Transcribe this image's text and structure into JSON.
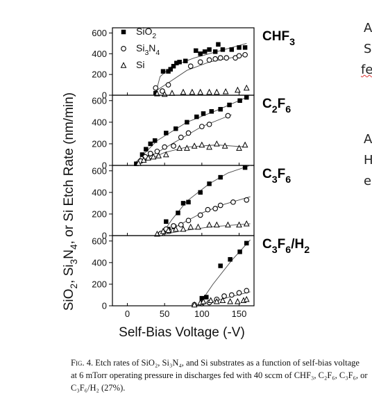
{
  "chart_data": {
    "type": "scatter",
    "xlabel": "Self-Bias Voltage (-V)",
    "ylabel": "SiO2, Si3N4, or Si Etch Rate (nm/min)",
    "xlim": [
      -20,
      170
    ],
    "x_ticks": [
      "0",
      "50",
      "100",
      "150"
    ],
    "legend": {
      "placement": "top-left",
      "entries": [
        "SiO2",
        "Si3N4",
        "Si"
      ]
    },
    "panels": [
      {
        "label": "CHF3",
        "ylim": [
          0,
          650
        ],
        "y_ticks": [
          "0",
          "200",
          "400",
          "600"
        ],
        "series": [
          {
            "name": "SiO2",
            "marker": "square",
            "points": [
              [
                38,
                20
              ],
              [
                48,
                230
              ],
              [
                55,
                230
              ],
              [
                58,
                250
              ],
              [
                62,
                280
              ],
              [
                66,
                310
              ],
              [
                70,
                320
              ],
              [
                78,
                330
              ],
              [
                92,
                430
              ],
              [
                98,
                400
              ],
              [
                104,
                420
              ],
              [
                110,
                440
              ],
              [
                118,
                420
              ],
              [
                122,
                490
              ],
              [
                128,
                440
              ],
              [
                140,
                440
              ],
              [
                150,
                460
              ],
              [
                158,
                460
              ]
            ]
          },
          {
            "name": "Si3N4",
            "marker": "circle",
            "points": [
              [
                38,
                70
              ],
              [
                47,
                40
              ],
              [
                55,
                100
              ],
              [
                85,
                280
              ],
              [
                98,
                320
              ],
              [
                110,
                340
              ],
              [
                118,
                350
              ],
              [
                125,
                360
              ],
              [
                133,
                360
              ],
              [
                145,
                360
              ],
              [
                150,
                380
              ],
              [
                158,
                390
              ]
            ]
          },
          {
            "name": "Si",
            "marker": "triangle",
            "points": [
              [
                40,
                15
              ],
              [
                50,
                10
              ],
              [
                60,
                20
              ],
              [
                75,
                30
              ],
              [
                87,
                30
              ],
              [
                98,
                30
              ],
              [
                110,
                30
              ],
              [
                120,
                30
              ],
              [
                132,
                35
              ],
              [
                148,
                50
              ],
              [
                160,
                70
              ]
            ]
          }
        ],
        "fits": [
          {
            "series": "SiO2",
            "points": [
              [
                38,
                20
              ],
              [
                44,
                180
              ],
              [
                60,
                280
              ],
              [
                90,
                360
              ],
              [
                120,
                420
              ],
              [
                160,
                500
              ]
            ]
          },
          {
            "series": "Si3N4",
            "points": [
              [
                38,
                40
              ],
              [
                55,
                120
              ],
              [
                80,
                240
              ],
              [
                110,
                320
              ],
              [
                160,
                390
              ]
            ]
          }
        ]
      },
      {
        "label": "C2F6",
        "ylim": [
          0,
          650
        ],
        "y_ticks": [
          "0",
          "200",
          "400",
          "600"
        ],
        "series": [
          {
            "name": "SiO2",
            "marker": "square",
            "points": [
              [
                12,
                15
              ],
              [
                20,
                100
              ],
              [
                25,
                150
              ],
              [
                31,
                200
              ],
              [
                37,
                230
              ],
              [
                52,
                300
              ],
              [
                65,
                340
              ],
              [
                80,
                400
              ],
              [
                93,
                450
              ],
              [
                102,
                480
              ],
              [
                113,
                500
              ],
              [
                125,
                520
              ],
              [
                137,
                560
              ],
              [
                151,
                600
              ],
              [
                160,
                630
              ]
            ]
          },
          {
            "name": "Si3N4",
            "marker": "circle",
            "points": [
              [
                18,
                40
              ],
              [
                24,
                80
              ],
              [
                31,
                110
              ],
              [
                40,
                130
              ],
              [
                50,
                170
              ],
              [
                62,
                180
              ],
              [
                72,
                260
              ],
              [
                82,
                300
              ],
              [
                100,
                360
              ],
              [
                110,
                380
              ],
              [
                135,
                460
              ]
            ]
          },
          {
            "name": "Si",
            "marker": "triangle",
            "points": [
              [
                15,
                20
              ],
              [
                22,
                50
              ],
              [
                28,
                70
              ],
              [
                35,
                80
              ],
              [
                42,
                90
              ],
              [
                52,
                100
              ],
              [
                70,
                160
              ],
              [
                80,
                160
              ],
              [
                90,
                180
              ],
              [
                100,
                190
              ],
              [
                110,
                170
              ],
              [
                120,
                200
              ],
              [
                131,
                180
              ],
              [
                150,
                160
              ],
              [
                158,
                190
              ]
            ]
          }
        ],
        "fits": [
          {
            "series": "SiO2",
            "points": [
              [
                10,
                20
              ],
              [
                40,
                230
              ],
              [
                80,
                400
              ],
              [
                120,
                510
              ],
              [
                160,
                630
              ]
            ]
          },
          {
            "series": "Si3N4",
            "points": [
              [
                15,
                20
              ],
              [
                50,
                160
              ],
              [
                100,
                360
              ],
              [
                140,
                470
              ]
            ]
          },
          {
            "series": "Si",
            "points": [
              [
                10,
                0
              ],
              [
                50,
                120
              ],
              [
                80,
                170
              ],
              [
                120,
                190
              ],
              [
                160,
                170
              ]
            ]
          }
        ]
      },
      {
        "label": "C3F6",
        "ylim": [
          0,
          650
        ],
        "y_ticks": [
          "0",
          "200",
          "400",
          "600"
        ],
        "series": [
          {
            "name": "SiO2",
            "marker": "square",
            "points": [
              [
                52,
                130
              ],
              [
                55,
                60
              ],
              [
                63,
                80
              ],
              [
                68,
                210
              ],
              [
                75,
                300
              ],
              [
                82,
                310
              ],
              [
                98,
                400
              ],
              [
                110,
                480
              ],
              [
                125,
                540
              ],
              [
                158,
                630
              ]
            ]
          },
          {
            "name": "Si3N4",
            "marker": "circle",
            "points": [
              [
                45,
                20
              ],
              [
                52,
                60
              ],
              [
                56,
                40
              ],
              [
                62,
                90
              ],
              [
                72,
                100
              ],
              [
                82,
                140
              ],
              [
                98,
                190
              ],
              [
                108,
                240
              ],
              [
                118,
                250
              ],
              [
                125,
                280
              ],
              [
                142,
                310
              ],
              [
                160,
                330
              ]
            ]
          },
          {
            "name": "Si",
            "marker": "triangle",
            "points": [
              [
                40,
                15
              ],
              [
                48,
                40
              ],
              [
                55,
                50
              ],
              [
                65,
                60
              ],
              [
                75,
                60
              ],
              [
                85,
                80
              ],
              [
                95,
                80
              ],
              [
                110,
                100
              ],
              [
                120,
                100
              ],
              [
                135,
                100
              ],
              [
                150,
                100
              ],
              [
                160,
                110
              ]
            ]
          }
        ],
        "fits": [
          {
            "series": "SiO2",
            "points": [
              [
                45,
                0
              ],
              [
                60,
                150
              ],
              [
                80,
                320
              ],
              [
                110,
                480
              ],
              [
                135,
                580
              ],
              [
                165,
                660
              ]
            ]
          },
          {
            "series": "Si3N4",
            "points": [
              [
                45,
                10
              ],
              [
                70,
                100
              ],
              [
                100,
                210
              ],
              [
                130,
                290
              ],
              [
                165,
                360
              ]
            ]
          },
          {
            "series": "Si",
            "points": [
              [
                40,
                0
              ],
              [
                70,
                40
              ],
              [
                110,
                80
              ],
              [
                165,
                110
              ]
            ]
          }
        ]
      },
      {
        "label": "C3F6/H2",
        "ylim": [
          0,
          650
        ],
        "y_ticks": [
          "0",
          "200",
          "400",
          "600"
        ],
        "series": [
          {
            "name": "SiO2",
            "marker": "square",
            "points": [
              [
                100,
                70
              ],
              [
                106,
                80
              ],
              [
                125,
                370
              ],
              [
                138,
                430
              ],
              [
                151,
                500
              ],
              [
                160,
                580
              ]
            ]
          },
          {
            "name": "Si3N4",
            "marker": "circle",
            "points": [
              [
                90,
                10
              ],
              [
                100,
                20
              ],
              [
                110,
                30
              ],
              [
                120,
                60
              ],
              [
                130,
                90
              ],
              [
                140,
                100
              ],
              [
                150,
                120
              ],
              [
                160,
                140
              ]
            ]
          },
          {
            "name": "Si",
            "marker": "triangle",
            "points": [
              [
                90,
                10
              ],
              [
                98,
                30
              ],
              [
                102,
                40
              ],
              [
                112,
                50
              ],
              [
                120,
                40
              ],
              [
                128,
                50
              ],
              [
                138,
                40
              ],
              [
                148,
                40
              ],
              [
                156,
                50
              ],
              [
                160,
                60
              ]
            ]
          }
        ],
        "fits": [
          {
            "series": "SiO2",
            "points": [
              [
                95,
                0
              ],
              [
                115,
                200
              ],
              [
                140,
                420
              ],
              [
                165,
                610
              ]
            ]
          },
          {
            "series": "Si3N4",
            "points": [
              [
                90,
                0
              ],
              [
                120,
                50
              ],
              [
                165,
                130
              ]
            ]
          }
        ]
      }
    ]
  },
  "side_text": {
    "line1": "A",
    "line2": "S",
    "line3": "fe",
    "line4": "A",
    "line5": "H",
    "line6": "e"
  },
  "caption": {
    "lead": "Fig. 4.",
    "text": " Etch rates of SiO₂, Si₃N₄, and Si substrates as a function of self-bias voltage at 6 mTorr operating pressure in discharges fed with 40 sccm of CHF₃, C₂F₆, C₃F₆, or C₃F₆/H₂ (27%)."
  },
  "colors": {
    "ink": "#000000",
    "open_marker": "#000000",
    "fit_line": "#444444"
  }
}
